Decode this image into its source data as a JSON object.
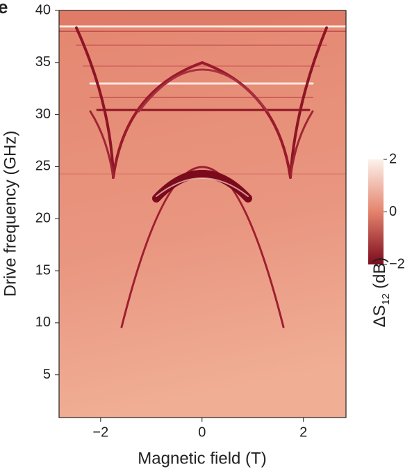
{
  "chart_data": {
    "type": "heatmap",
    "panel_label": "e",
    "xlabel": "Magnetic field (T)",
    "ylabel": "Drive frequency (GHz)",
    "xlim": [
      -2.82,
      2.84
    ],
    "ylim": [
      0.9,
      40
    ],
    "xticks": [
      {
        "value": -2,
        "label": "−2"
      },
      0,
      2
    ],
    "yticks": [
      5,
      10,
      15,
      20,
      25,
      30,
      35,
      40
    ],
    "colorbar": {
      "label": [
        "ΔS",
        "12",
        " (dB)"
      ],
      "lim": [
        -2,
        2
      ],
      "ticks": [
        {
          "value": -2,
          "label": "−2"
        },
        0,
        2
      ],
      "colors": [
        "#7c0a1d",
        "#e4836c",
        "#fcf2ec"
      ]
    }
  }
}
